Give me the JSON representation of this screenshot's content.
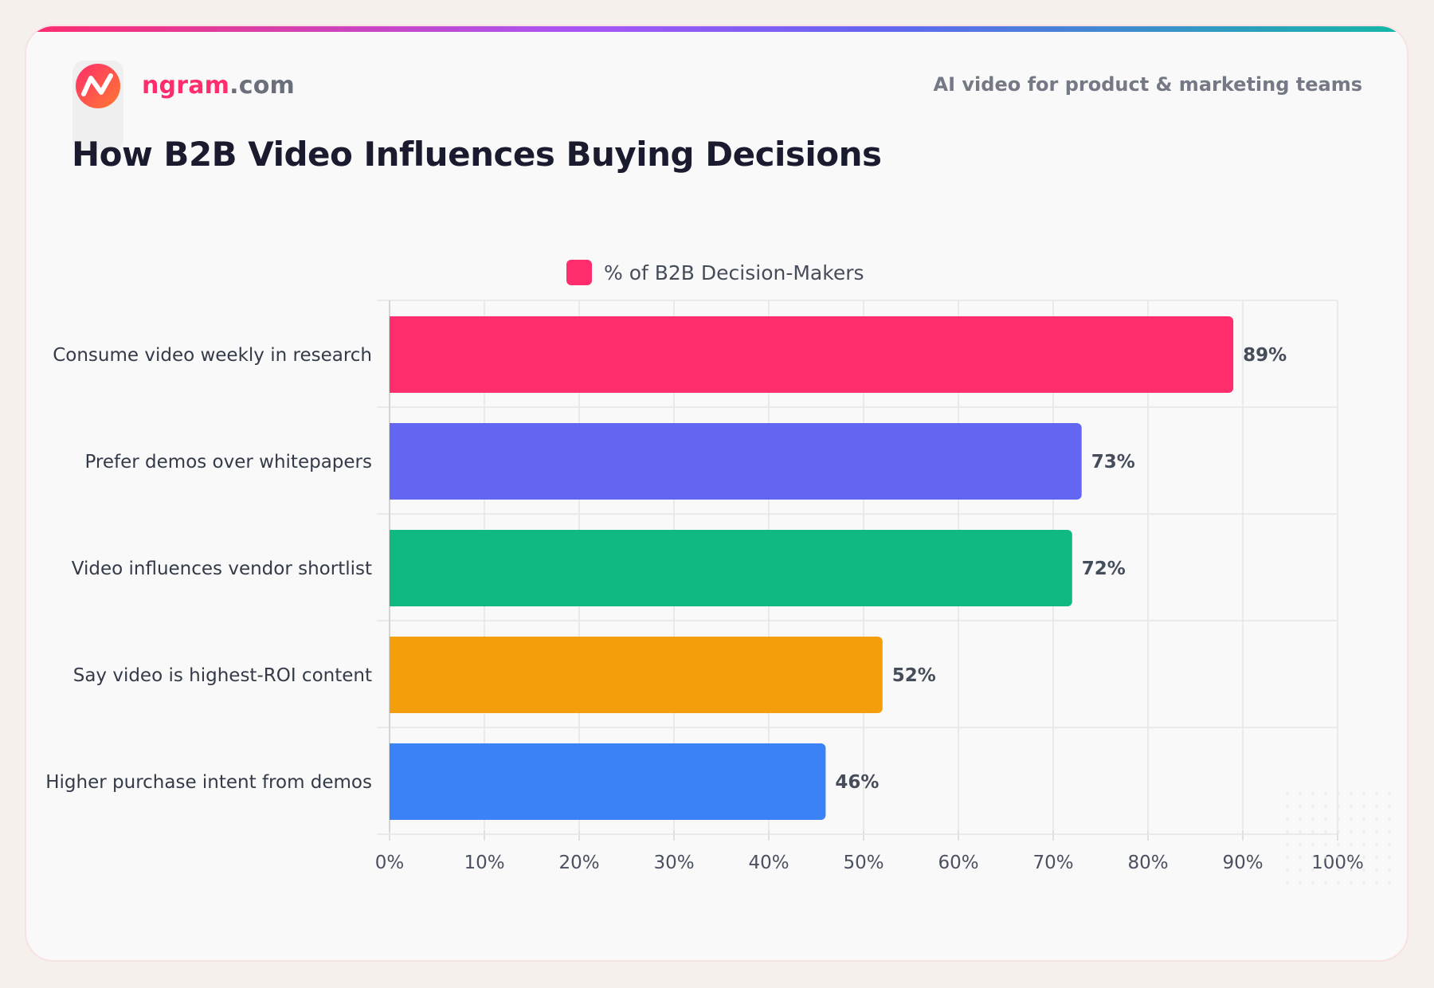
{
  "header": {
    "brand_name": "ngram",
    "brand_tld": ".com",
    "tagline": "AI video for product & marketing teams",
    "logo_icon": "ngram-logo-icon"
  },
  "colors": {
    "accent": "#ff2d6c",
    "title": "#1a1b2e",
    "grid": "#e6e6e6"
  },
  "chart_data": {
    "type": "bar",
    "orientation": "horizontal",
    "title": "How B2B Video Influences Buying Decisions",
    "legend": {
      "placement": "top-center"
    },
    "series": [
      {
        "name": "% of B2B Decision-Makers",
        "values": [
          89,
          73,
          72,
          52,
          46
        ],
        "colors": [
          "#ff2d6c",
          "#6366f1",
          "#10b981",
          "#f59e0b",
          "#3b82f6"
        ],
        "value_labels": [
          "89%",
          "73%",
          "72%",
          "52%",
          "46%"
        ]
      }
    ],
    "categories": [
      "Consume video weekly in research",
      "Prefer demos over whitepapers",
      "Video influences vendor shortlist",
      "Say video is highest-ROI content",
      "Higher purchase intent from demos"
    ],
    "xlim": [
      0,
      100
    ],
    "x_ticks": [
      0,
      10,
      20,
      30,
      40,
      50,
      60,
      70,
      80,
      90,
      100
    ],
    "x_tick_labels": [
      "0%",
      "10%",
      "20%",
      "30%",
      "40%",
      "50%",
      "60%",
      "70%",
      "80%",
      "90%",
      "100%"
    ],
    "grid": true
  }
}
